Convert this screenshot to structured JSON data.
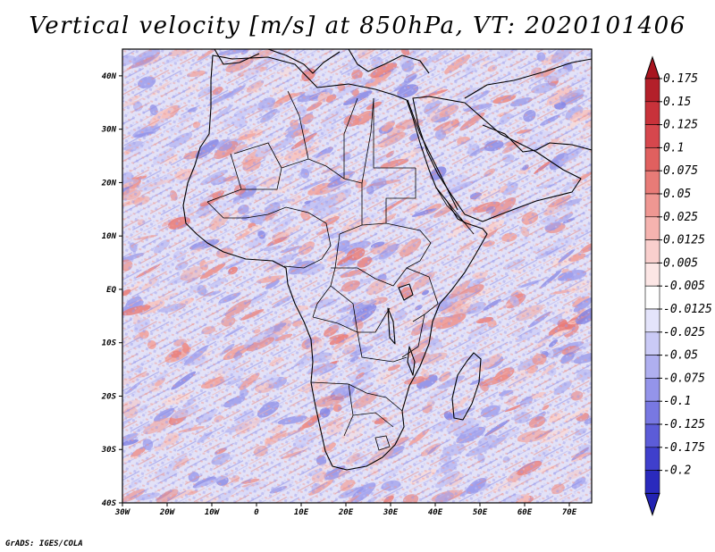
{
  "title": "Vertical velocity [m/s] at 850hPa, VT: 2020101406",
  "credit": "GrADS: IGES/COLA",
  "map": {
    "lon_range": [
      -30,
      75
    ],
    "lat_range": [
      -40,
      45
    ],
    "lon_ticks": [
      {
        "value": -30,
        "label": "30W"
      },
      {
        "value": -20,
        "label": "20W"
      },
      {
        "value": -10,
        "label": "10W"
      },
      {
        "value": 0,
        "label": "0"
      },
      {
        "value": 10,
        "label": "10E"
      },
      {
        "value": 20,
        "label": "20E"
      },
      {
        "value": 30,
        "label": "30E"
      },
      {
        "value": 40,
        "label": "40E"
      },
      {
        "value": 50,
        "label": "50E"
      },
      {
        "value": 60,
        "label": "60E"
      },
      {
        "value": 70,
        "label": "70E"
      }
    ],
    "lat_ticks": [
      {
        "value": 40,
        "label": "40N"
      },
      {
        "value": 30,
        "label": "30N"
      },
      {
        "value": 20,
        "label": "20N"
      },
      {
        "value": 10,
        "label": "10N"
      },
      {
        "value": 0,
        "label": "EQ"
      },
      {
        "value": -10,
        "label": "10S"
      },
      {
        "value": -20,
        "label": "20S"
      },
      {
        "value": -30,
        "label": "30S"
      },
      {
        "value": -40,
        "label": "40S"
      }
    ]
  },
  "colorbar": {
    "levels": [
      {
        "label": "0.175",
        "color": "#b3202a"
      },
      {
        "label": "0.15",
        "color": "#c8323a"
      },
      {
        "label": "0.125",
        "color": "#d6474d"
      },
      {
        "label": "0.1",
        "color": "#e0605f"
      },
      {
        "label": "0.075",
        "color": "#e87b77"
      },
      {
        "label": "0.05",
        "color": "#ef9792"
      },
      {
        "label": "0.025",
        "color": "#f5b3af"
      },
      {
        "label": "0.0125",
        "color": "#f9cfcd"
      },
      {
        "label": "0.005",
        "color": "#fce6e5"
      },
      {
        "label": "-0.005",
        "color": "#ffffff"
      },
      {
        "label": "-0.0125",
        "color": "#e4e4fb"
      },
      {
        "label": "-0.025",
        "color": "#cacaf6"
      },
      {
        "label": "-0.05",
        "color": "#afaff0"
      },
      {
        "label": "-0.075",
        "color": "#9494ea"
      },
      {
        "label": "-0.1",
        "color": "#7878e2"
      },
      {
        "label": "-0.125",
        "color": "#5c5cd8"
      },
      {
        "label": "-0.175",
        "color": "#3f3fcc"
      },
      {
        "label": "-0.2",
        "color": "#2a2abd"
      }
    ],
    "bottom_color": "#2323b3",
    "top_color": "#a8141f"
  }
}
